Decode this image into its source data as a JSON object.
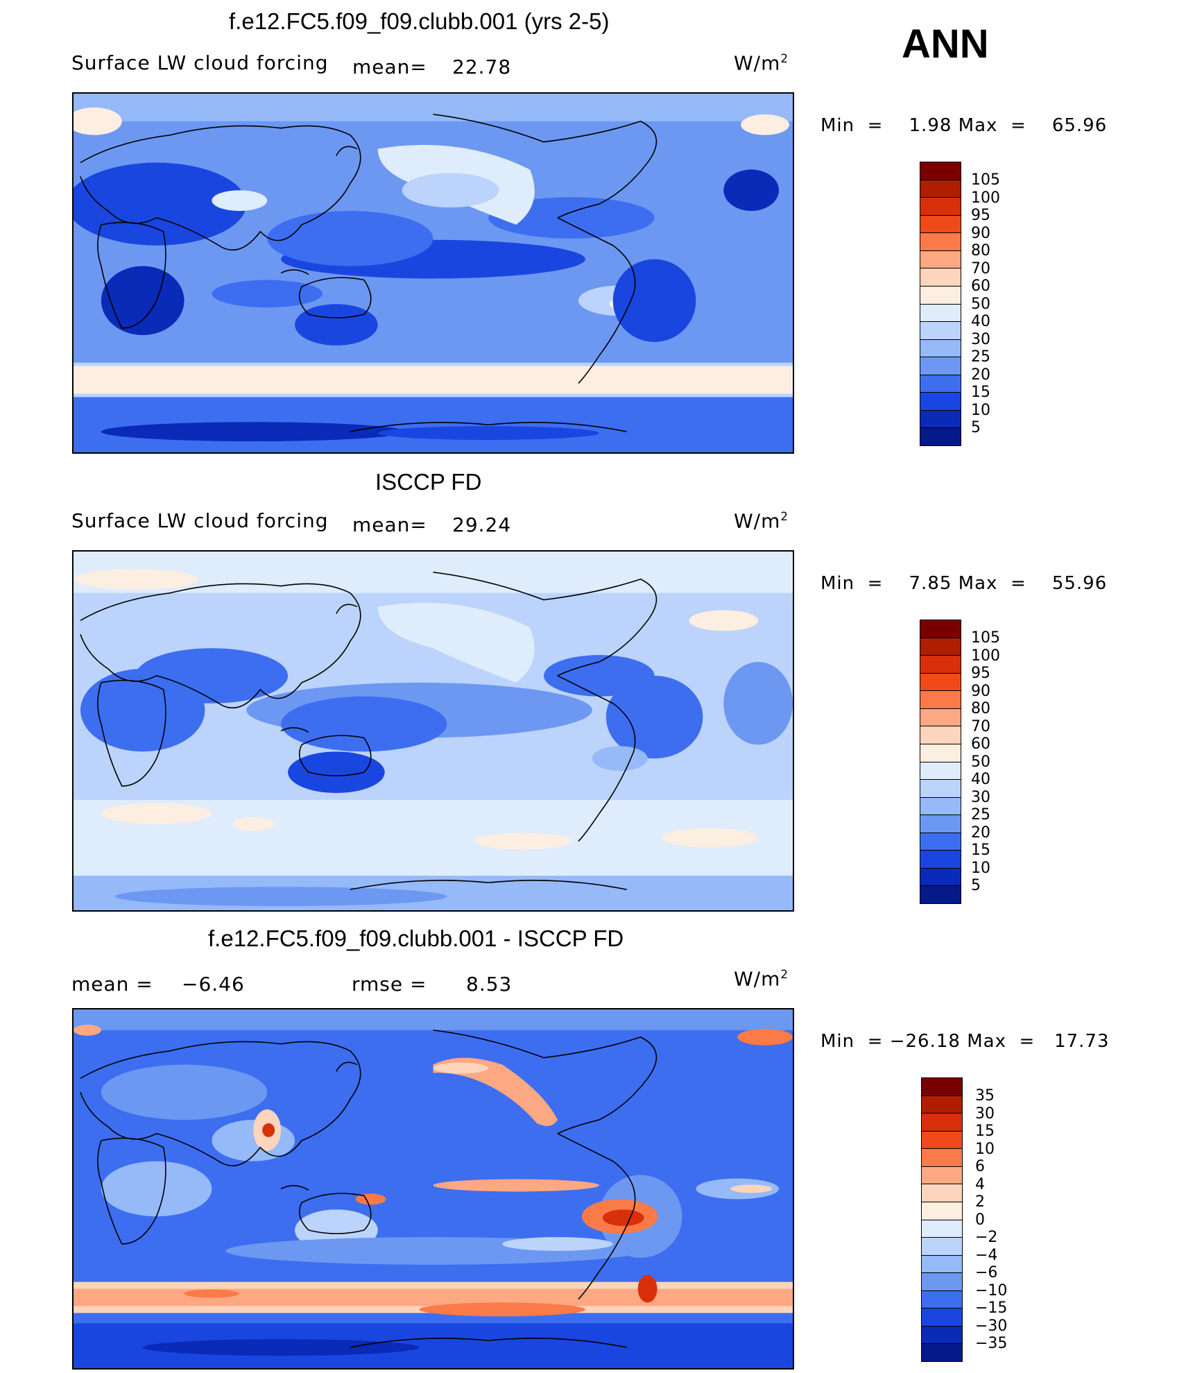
{
  "season": "ANN",
  "panels": [
    {
      "title": "f.e12.FC5.f09_f09.clubb.001 (yrs 2-5)",
      "variable": "Surface LW cloud forcing",
      "mean_label": "mean=",
      "mean_value": "22.78",
      "units_base": "W/m",
      "units_exp": "2",
      "min_label": "Min  =",
      "min_value": "1.98",
      "max_label": "Max  =",
      "max_value": "65.96",
      "levels": [
        "105",
        "100",
        "95",
        "90",
        "80",
        "70",
        "60",
        "50",
        "40",
        "30",
        "25",
        "20",
        "15",
        "10",
        "5"
      ]
    },
    {
      "title": "ISCCP FD",
      "variable": "Surface LW cloud forcing",
      "mean_label": "mean=",
      "mean_value": "29.24",
      "units_base": "W/m",
      "units_exp": "2",
      "min_label": "Min  =",
      "min_value": "7.85",
      "max_label": "Max  =",
      "max_value": "55.96",
      "levels": [
        "105",
        "100",
        "95",
        "90",
        "80",
        "70",
        "60",
        "50",
        "40",
        "30",
        "25",
        "20",
        "15",
        "10",
        "5"
      ]
    },
    {
      "title": "f.e12.FC5.f09_f09.clubb.001 - ISCCP FD",
      "mean_label": "mean  =",
      "mean_value": "−6.46",
      "rmse_label": "rmse  =",
      "rmse_value": "8.53",
      "units_base": "W/m",
      "units_exp": "2",
      "min_label": "Min  =",
      "min_value": "−26.18",
      "max_label": "Max  =",
      "max_value": "17.73",
      "levels": [
        "35",
        "30",
        "15",
        "10",
        "6",
        "4",
        "2",
        "0",
        "−2",
        "−4",
        "−6",
        "−10",
        "−15",
        "−30",
        "−35"
      ]
    }
  ],
  "colorbar_colors": [
    "#7a0000",
    "#b01e00",
    "#d8300a",
    "#f04a18",
    "#fa7a48",
    "#fca882",
    "#fdd4bc",
    "#fdeee2",
    "#dfecfb",
    "#bcd4fb",
    "#96b9f8",
    "#6c98f2",
    "#3d6ef0",
    "#1a46e0",
    "#0a2ab8",
    "#041a8a"
  ]
}
